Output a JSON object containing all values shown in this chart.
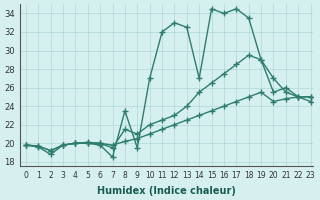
{
  "xlabel": "Humidex (Indice chaleur)",
  "ylabel": "",
  "background_color": "#d6f0f0",
  "line_color": "#2e7d6e",
  "grid_color": "#b0d8d8",
  "xlim": [
    0,
    23
  ],
  "ylim": [
    17.5,
    35
  ],
  "yticks": [
    18,
    20,
    22,
    24,
    26,
    28,
    30,
    32,
    34
  ],
  "xticks": [
    0,
    1,
    2,
    3,
    4,
    5,
    6,
    7,
    8,
    9,
    10,
    11,
    12,
    13,
    14,
    15,
    16,
    17,
    18,
    19,
    20,
    21,
    22,
    23
  ],
  "line1_x": [
    0,
    1,
    2,
    3,
    4,
    5,
    6,
    7,
    8,
    9,
    10,
    11,
    12,
    13,
    14,
    15,
    16,
    17,
    18,
    19,
    20,
    21,
    22,
    23
  ],
  "line1_y": [
    19.8,
    19.6,
    18.8,
    19.8,
    20.0,
    20.0,
    19.8,
    18.5,
    23.5,
    19.5,
    27.0,
    32.0,
    33.0,
    32.5,
    27.0,
    34.5,
    34.0,
    34.5,
    33.5,
    29.0,
    27.0,
    25.5,
    25.0,
    25.0
  ],
  "line2_x": [
    0,
    1,
    2,
    3,
    4,
    5,
    6,
    7,
    8,
    9,
    10,
    11,
    12,
    13,
    14,
    15,
    16,
    17,
    18,
    19,
    20,
    21,
    22,
    23
  ],
  "line2_y": [
    19.8,
    19.7,
    19.2,
    19.8,
    20.0,
    20.0,
    20.0,
    19.5,
    21.5,
    21.0,
    22.0,
    22.5,
    23.0,
    24.0,
    25.5,
    26.5,
    27.5,
    28.5,
    29.5,
    29.0,
    25.5,
    26.0,
    25.0,
    24.5
  ],
  "line3_x": [
    0,
    1,
    2,
    3,
    4,
    5,
    6,
    7,
    8,
    9,
    10,
    11,
    12,
    13,
    14,
    15,
    16,
    17,
    18,
    19,
    20,
    21,
    22,
    23
  ],
  "line3_y": [
    19.8,
    19.7,
    19.2,
    19.8,
    20.0,
    20.1,
    20.0,
    19.8,
    20.2,
    20.5,
    21.0,
    21.5,
    22.0,
    22.5,
    23.0,
    23.5,
    24.0,
    24.5,
    25.0,
    25.5,
    24.5,
    24.8,
    25.0,
    25.0
  ],
  "marker": "+",
  "markersize": 4,
  "linewidth": 1.0
}
